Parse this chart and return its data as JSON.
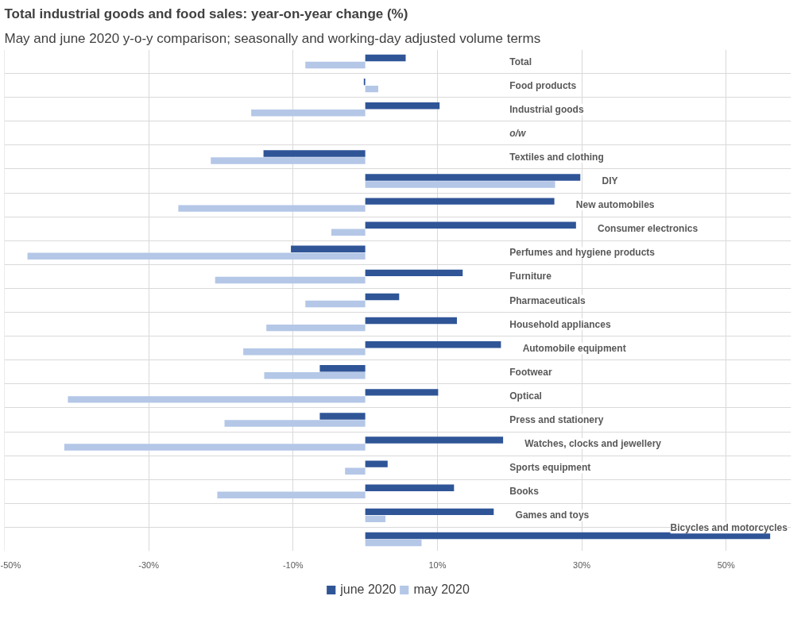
{
  "chart_data": {
    "type": "bar",
    "orientation": "horizontal",
    "title": "Total industrial goods and food sales: year-on-year change (%)",
    "subtitle": "May and june 2020 y-o-y comparison; seasonally and working-day adjusted volume terms",
    "categories": [
      "Total",
      "Food products",
      "Industrial goods",
      "o/w",
      "Textiles and clothing",
      "DIY",
      "New automobiles",
      "Consumer electronics",
      "Perfumes and hygiene products",
      "Furniture",
      "Pharmaceuticals",
      "Household appliances",
      "Automobile equipment",
      "Footwear",
      "Optical",
      "Press and stationery",
      "Watches, clocks and jewellery",
      "Sports equipment",
      "Books",
      "Games and toys",
      "Bicycles and motorcycles"
    ],
    "series": [
      {
        "name": "june 2020",
        "color": "#2f5597",
        "values": [
          5.6,
          -0.2,
          10.3,
          null,
          -14.1,
          29.8,
          26.2,
          29.2,
          -10.3,
          13.5,
          4.7,
          12.7,
          18.8,
          -6.3,
          10.1,
          -6.3,
          19.1,
          3.1,
          12.3,
          17.8,
          56.1
        ]
      },
      {
        "name": "may 2020",
        "color": "#b4c7e7",
        "values": [
          -8.3,
          1.8,
          -15.8,
          null,
          -21.4,
          26.3,
          -25.9,
          -4.7,
          -46.8,
          -20.8,
          -8.3,
          -13.7,
          -16.9,
          -14.0,
          -41.2,
          -19.5,
          -41.7,
          -2.8,
          -20.5,
          2.8,
          7.8
        ]
      }
    ],
    "xlim": [
      -50,
      59
    ],
    "xticks": [
      {
        "value": -50,
        "label": "-50%"
      },
      {
        "value": -30,
        "label": "-30%"
      },
      {
        "value": -10,
        "label": "-10%"
      },
      {
        "value": 10,
        "label": "10%"
      },
      {
        "value": 30,
        "label": "30%"
      },
      {
        "value": 50,
        "label": "50%"
      }
    ],
    "grid": true,
    "legend": "bottom",
    "tick_labels": "x"
  }
}
